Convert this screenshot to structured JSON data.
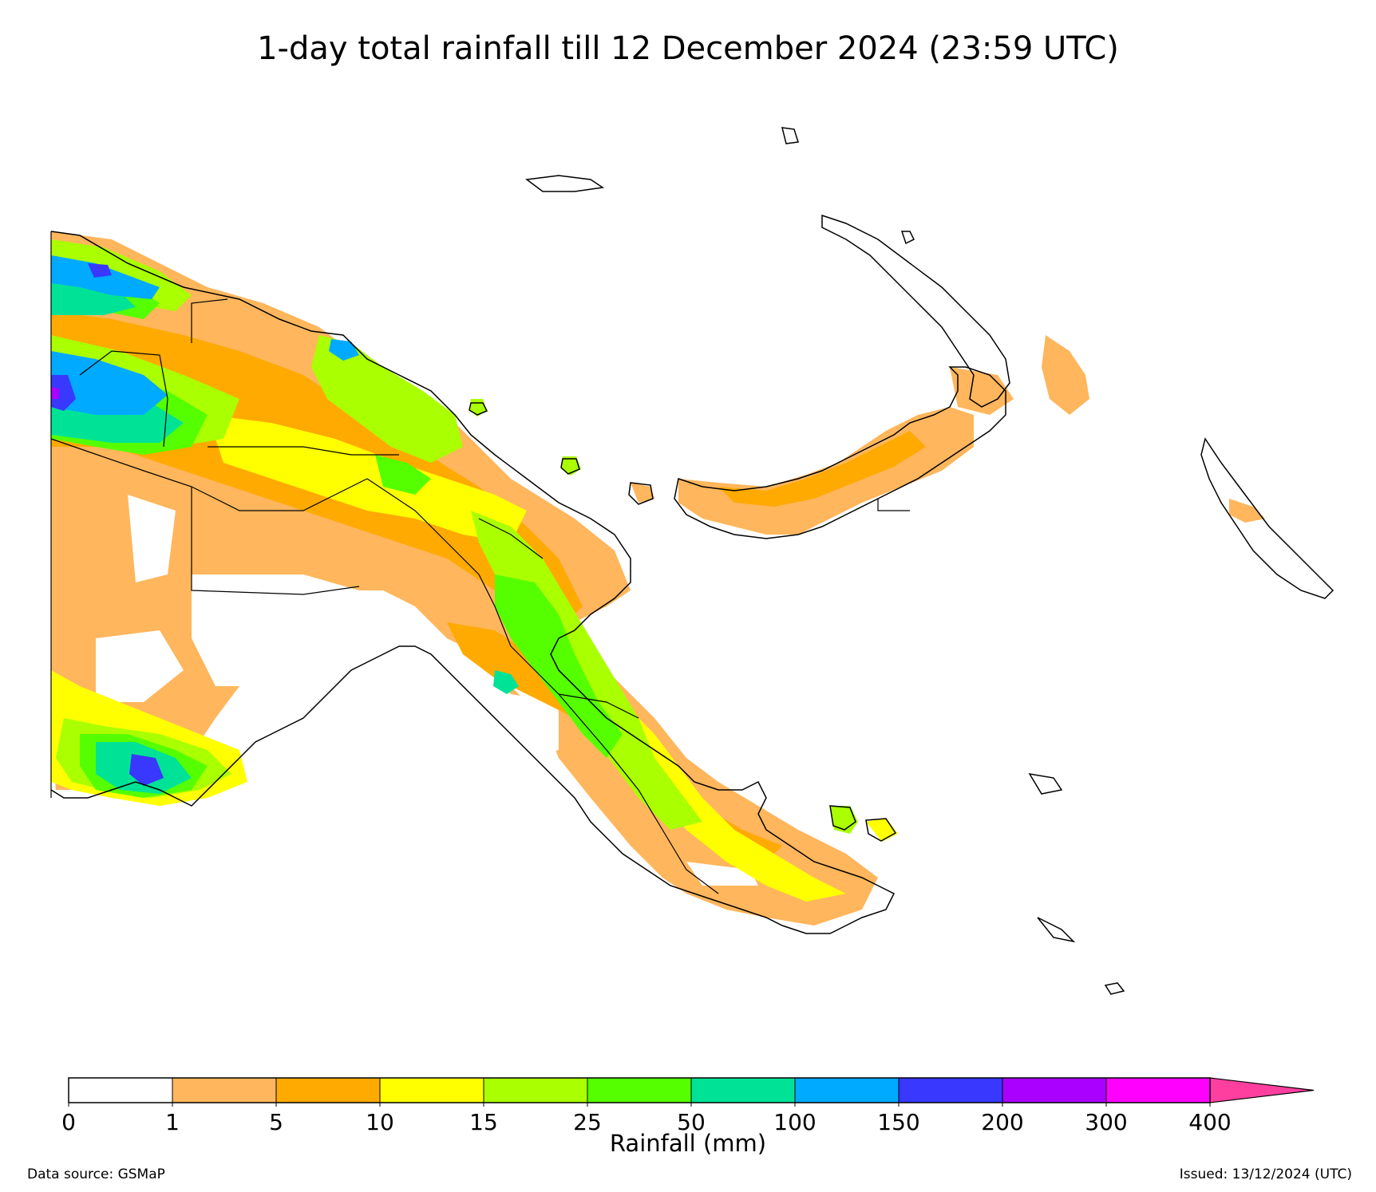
{
  "title": "1-day total rainfall till 12 December 2024 (23:59 UTC)",
  "colorbar": {
    "unit_label": "Rainfall (mm)",
    "ticks": [
      "0",
      "1",
      "5",
      "10",
      "15",
      "25",
      "50",
      "100",
      "150",
      "200",
      "300",
      "400"
    ],
    "colors": [
      "#ffffff",
      "#ffb65c",
      "#ffaa00",
      "#ffff00",
      "#aaff00",
      "#55ff00",
      "#00e396",
      "#00aaff",
      "#3838ff",
      "#aa00ff",
      "#ff00ff"
    ],
    "extend_color": "#ff3fa0"
  },
  "footer": {
    "source": "Data source: GSMaP",
    "issued": "Issued: 13/12/2024 (UTC)"
  }
}
